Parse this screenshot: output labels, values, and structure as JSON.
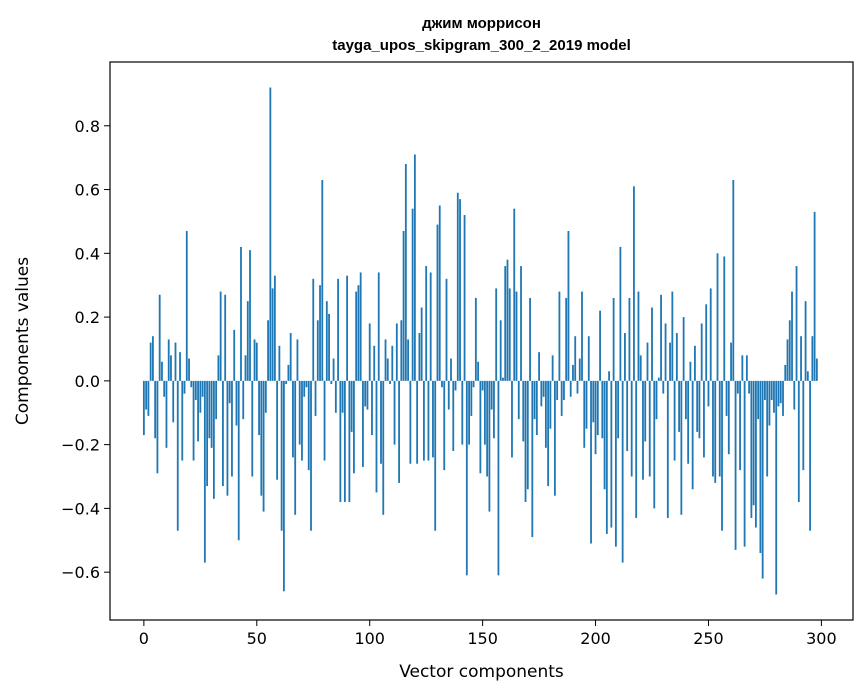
{
  "chart_data": {
    "type": "bar",
    "title_line1": "джим моррисон",
    "title_line2": "tayga_upos_skipgram_300_2_2019 model",
    "xlabel": "Vector components",
    "ylabel": "Components values",
    "xlim": [
      -15,
      314
    ],
    "ylim": [
      -0.75,
      1.0
    ],
    "xticks": [
      0,
      50,
      100,
      150,
      200,
      250,
      300
    ],
    "xtick_labels": [
      "0",
      "50",
      "100",
      "150",
      "200",
      "250",
      "300"
    ],
    "yticks": [
      -0.6,
      -0.4,
      -0.2,
      0.0,
      0.2,
      0.4,
      0.6,
      0.8
    ],
    "ytick_labels": [
      "−0.6",
      "−0.4",
      "−0.2",
      "0.0",
      "0.2",
      "0.4",
      "0.6",
      "0.8"
    ],
    "bar_color": "#1f77b4",
    "values": [
      -0.17,
      -0.09,
      -0.11,
      0.12,
      0.14,
      -0.18,
      -0.29,
      0.27,
      0.06,
      -0.05,
      -0.21,
      0.13,
      0.08,
      -0.13,
      0.12,
      -0.47,
      0.09,
      -0.25,
      -0.04,
      0.47,
      0.07,
      -0.02,
      -0.25,
      -0.06,
      -0.19,
      -0.1,
      -0.05,
      -0.57,
      -0.33,
      -0.18,
      -0.21,
      -0.37,
      -0.12,
      0.08,
      0.28,
      -0.33,
      0.27,
      -0.36,
      -0.07,
      -0.3,
      0.16,
      -0.14,
      -0.5,
      0.42,
      -0.12,
      0.08,
      0.25,
      0.41,
      -0.3,
      0.13,
      0.12,
      -0.17,
      -0.36,
      -0.41,
      -0.1,
      0.19,
      0.92,
      0.29,
      0.33,
      -0.31,
      0.11,
      -0.47,
      -0.66,
      -0.01,
      0.05,
      0.15,
      -0.24,
      -0.42,
      0.13,
      -0.2,
      -0.25,
      -0.05,
      -0.02,
      -0.28,
      -0.47,
      0.32,
      -0.11,
      0.19,
      0.3,
      0.63,
      -0.25,
      0.25,
      0.21,
      -0.01,
      0.07,
      -0.1,
      0.32,
      -0.38,
      -0.1,
      -0.38,
      0.33,
      -0.38,
      -0.16,
      -0.29,
      0.28,
      0.3,
      0.34,
      -0.27,
      -0.08,
      -0.09,
      0.18,
      -0.17,
      0.11,
      -0.35,
      0.34,
      -0.26,
      -0.42,
      0.13,
      0.07,
      -0.01,
      0.11,
      -0.2,
      0.18,
      -0.32,
      0.19,
      0.47,
      0.68,
      0.13,
      -0.26,
      0.54,
      0.71,
      -0.26,
      0.15,
      0.23,
      -0.25,
      0.36,
      -0.25,
      0.34,
      -0.24,
      -0.47,
      0.49,
      0.55,
      -0.02,
      -0.28,
      0.32,
      -0.09,
      0.07,
      -0.22,
      -0.03,
      0.59,
      0.57,
      -0.2,
      0.52,
      -0.61,
      -0.2,
      -0.11,
      -0.02,
      0.26,
      0.06,
      -0.29,
      -0.03,
      -0.2,
      -0.3,
      -0.41,
      -0.09,
      -0.18,
      0.29,
      -0.61,
      0.19,
      0.01,
      0.36,
      0.38,
      0.29,
      -0.24,
      0.54,
      0.28,
      -0.12,
      0.36,
      -0.19,
      -0.38,
      -0.34,
      0.26,
      -0.49,
      -0.12,
      -0.17,
      0.09,
      -0.08,
      -0.05,
      -0.21,
      -0.33,
      -0.15,
      0.08,
      -0.36,
      -0.06,
      0.28,
      -0.11,
      -0.06,
      0.26,
      0.47,
      -0.05,
      0.05,
      0.14,
      -0.04,
      0.07,
      0.28,
      -0.21,
      -0.15,
      0.14,
      -0.51,
      -0.13,
      -0.23,
      -0.17,
      0.22,
      -0.18,
      -0.34,
      -0.48,
      0.03,
      -0.46,
      0.26,
      -0.52,
      -0.18,
      0.42,
      -0.57,
      0.15,
      -0.22,
      0.26,
      -0.3,
      0.61,
      -0.43,
      0.28,
      0.08,
      -0.31,
      -0.19,
      0.12,
      -0.3,
      0.23,
      -0.4,
      -0.12,
      0.01,
      0.27,
      -0.04,
      0.18,
      -0.43,
      0.12,
      0.28,
      -0.25,
      0.15,
      -0.16,
      -0.42,
      0.2,
      -0.12,
      -0.26,
      0.06,
      -0.34,
      0.11,
      -0.16,
      -0.18,
      0.18,
      -0.24,
      0.24,
      -0.08,
      0.29,
      -0.3,
      -0.32,
      0.4,
      -0.3,
      -0.47,
      0.39,
      -0.11,
      -0.23,
      0.12,
      0.63,
      -0.53,
      -0.04,
      -0.28,
      0.08,
      -0.52,
      0.08,
      -0.04,
      -0.43,
      -0.39,
      -0.46,
      -0.12,
      -0.54,
      -0.62,
      -0.06,
      -0.3,
      -0.14,
      -0.06,
      -0.1,
      -0.67,
      -0.08,
      -0.07,
      -0.11,
      0.05,
      0.13,
      0.19,
      0.28,
      -0.09,
      0.36,
      -0.38,
      0.14,
      -0.28,
      0.25,
      0.03,
      -0.47,
      0.14,
      0.53,
      0.07
    ]
  }
}
